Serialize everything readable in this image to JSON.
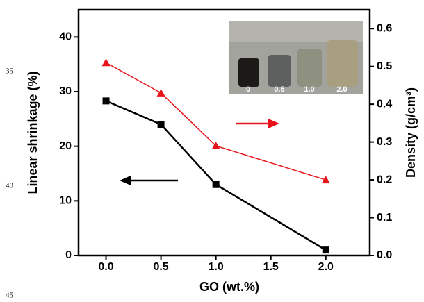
{
  "chart_data": {
    "type": "line",
    "x": [
      0,
      0.5,
      1,
      2
    ],
    "xlabel": "GO (wt.%)",
    "ylabel": "Linear shrinkage (%)",
    "y2label": "Density (g/cm³)",
    "xlim": [
      -0.25,
      2.4
    ],
    "xticks": [
      {
        "value": 0,
        "label": "0.0"
      },
      0.5,
      {
        "value": 1,
        "label": "1.0"
      },
      1.5,
      {
        "value": 2,
        "label": "2.0"
      }
    ],
    "ylim": [
      0,
      45
    ],
    "yticks": [
      0,
      10,
      20,
      30,
      40
    ],
    "y2lim": [
      0,
      0.65
    ],
    "y2ticks": [
      {
        "value": 0,
        "label": "0.0"
      },
      0.1,
      0.2,
      0.3,
      0.4,
      0.5,
      0.6
    ],
    "series": [
      {
        "color": "#000000",
        "marker": "square",
        "values": [
          28.3,
          24,
          13,
          1
        ]
      },
      {
        "color": "#e8141c",
        "marker": "triangle",
        "axis": "y2",
        "values": [
          0.51,
          0.43,
          0.29,
          0.2
        ]
      }
    ],
    "inset_labels": [
      "0",
      "0.5",
      "1.0",
      "2.0"
    ],
    "margin_numbers": [
      "35",
      "40",
      "45"
    ]
  }
}
